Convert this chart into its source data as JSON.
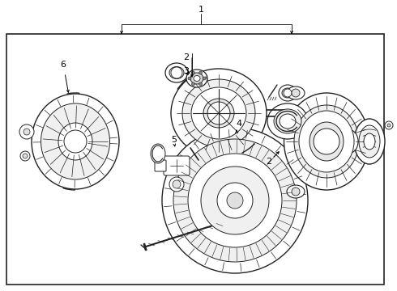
{
  "background_color": "#ffffff",
  "border_color": "#000000",
  "line_color": "#222222",
  "text_color": "#000000",
  "figsize": [
    4.9,
    3.6
  ],
  "dpi": 100,
  "label_1": "1",
  "label_2": "2",
  "label_3": "3",
  "label_4": "4",
  "label_5": "5",
  "label_6": "6",
  "font_size": 8
}
